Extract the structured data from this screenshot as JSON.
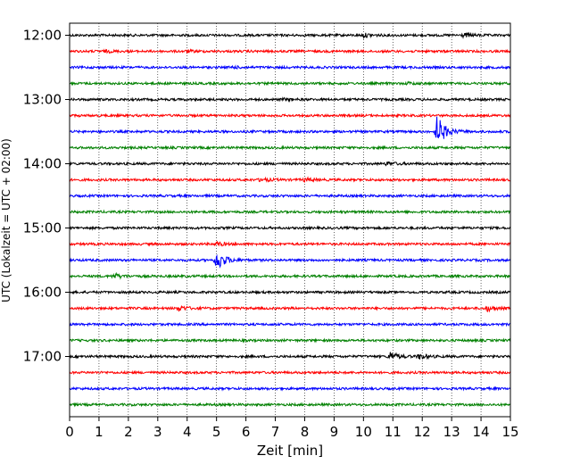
{
  "chart_data": {
    "type": "line",
    "title": "",
    "xlabel": "Zeit  [min]",
    "ylabel": "UTC (Lokalzeit = UTC + 02:00)",
    "xlim": [
      0,
      15
    ],
    "x_ticks": [
      0,
      1,
      2,
      3,
      4,
      5,
      6,
      7,
      8,
      9,
      10,
      11,
      12,
      13,
      14,
      15
    ],
    "y_ticks": [
      "12:00",
      "13:00",
      "14:00",
      "15:00",
      "16:00",
      "17:00"
    ],
    "grid": "vertical dotted",
    "row_minutes": 15,
    "rows_start": "12:00",
    "colors": [
      "#000000",
      "#ff0000",
      "#0000ff",
      "#008000"
    ],
    "rows": [
      {
        "start": "12:00",
        "events": [
          {
            "t": 10.0,
            "amp": 2
          },
          {
            "t": 13.4,
            "amp": 2
          }
        ]
      },
      {
        "start": "12:15",
        "events": [
          {
            "t": 1.2,
            "amp": 1
          },
          {
            "t": 4.0,
            "amp": 1
          }
        ]
      },
      {
        "start": "12:30",
        "events": [
          {
            "t": 5.5,
            "amp": 1
          }
        ]
      },
      {
        "start": "12:45",
        "events": [
          {
            "t": 11.5,
            "amp": 1
          }
        ]
      },
      {
        "start": "13:00",
        "events": [
          {
            "t": 7.3,
            "amp": 1
          }
        ]
      },
      {
        "start": "13:15",
        "events": []
      },
      {
        "start": "13:30",
        "events": [
          {
            "t": 12.5,
            "amp": 18
          }
        ]
      },
      {
        "start": "13:45",
        "events": []
      },
      {
        "start": "14:00",
        "events": [
          {
            "t": 10.8,
            "amp": 2
          }
        ]
      },
      {
        "start": "14:15",
        "events": [
          {
            "t": 6.5,
            "amp": 2
          },
          {
            "t": 8.0,
            "amp": 2
          }
        ]
      },
      {
        "start": "14:30",
        "events": []
      },
      {
        "start": "14:45",
        "events": []
      },
      {
        "start": "15:00",
        "events": []
      },
      {
        "start": "15:15",
        "events": [
          {
            "t": 5.0,
            "amp": 2
          }
        ]
      },
      {
        "start": "15:30",
        "events": [
          {
            "t": 5.0,
            "amp": 12
          }
        ]
      },
      {
        "start": "15:45",
        "events": [
          {
            "t": 1.5,
            "amp": 3
          }
        ]
      },
      {
        "start": "16:00",
        "events": []
      },
      {
        "start": "16:15",
        "events": [
          {
            "t": 3.7,
            "amp": 3
          },
          {
            "t": 14.2,
            "amp": 3
          }
        ]
      },
      {
        "start": "16:30",
        "events": []
      },
      {
        "start": "16:45",
        "events": []
      },
      {
        "start": "17:00",
        "events": [
          {
            "t": 10.9,
            "amp": 5
          },
          {
            "t": 11.9,
            "amp": 3
          }
        ]
      },
      {
        "start": "17:15",
        "events": []
      },
      {
        "start": "17:30",
        "events": []
      },
      {
        "start": "17:45",
        "events": []
      }
    ]
  }
}
